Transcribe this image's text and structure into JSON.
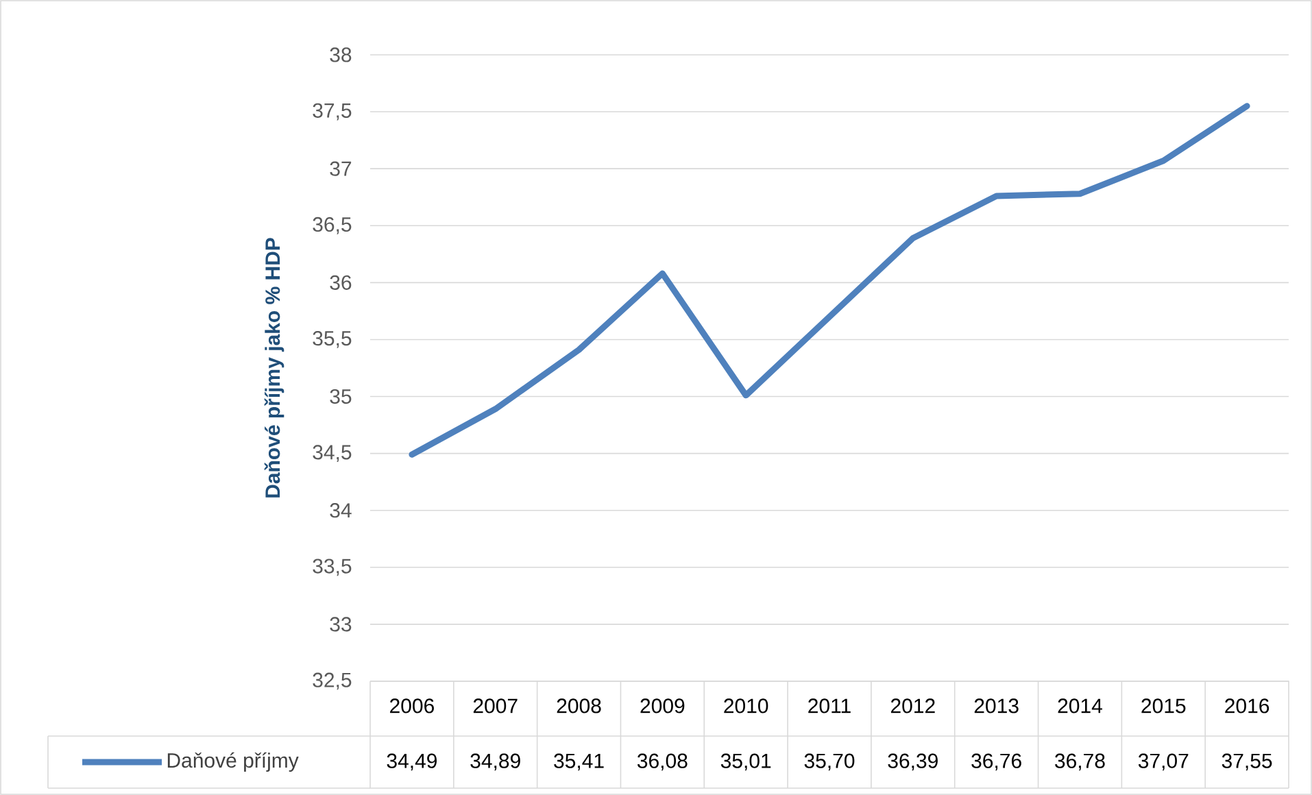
{
  "chart_data": {
    "type": "line",
    "ylabel": "Daňové příjmy jako % HDP",
    "categories": [
      "2006",
      "2007",
      "2008",
      "2009",
      "2010",
      "2011",
      "2012",
      "2013",
      "2014",
      "2015",
      "2016"
    ],
    "series": [
      {
        "name": "Daňové příjmy",
        "color": "#4f81bd",
        "values": [
          34.49,
          34.89,
          35.41,
          36.08,
          35.01,
          35.7,
          36.39,
          36.76,
          36.78,
          37.07,
          37.55
        ],
        "value_labels": [
          "34,49",
          "34,89",
          "35,41",
          "36,08",
          "35,01",
          "35,70",
          "36,39",
          "36,76",
          "36,78",
          "37,07",
          "37,55"
        ]
      }
    ],
    "ylim": [
      32.5,
      38
    ],
    "yticks": [
      {
        "value": 32.5,
        "label": "32,5"
      },
      33,
      {
        "value": 33.5,
        "label": "33,5"
      },
      34,
      {
        "value": 34.5,
        "label": "34,5"
      },
      35,
      {
        "value": 35.5,
        "label": "35,5"
      },
      36,
      {
        "value": 36.5,
        "label": "36,5"
      },
      37,
      {
        "value": 37.5,
        "label": "37,5"
      },
      38
    ],
    "grid": "y",
    "legend": "bottom",
    "marker": "none",
    "line_style": "solid"
  }
}
